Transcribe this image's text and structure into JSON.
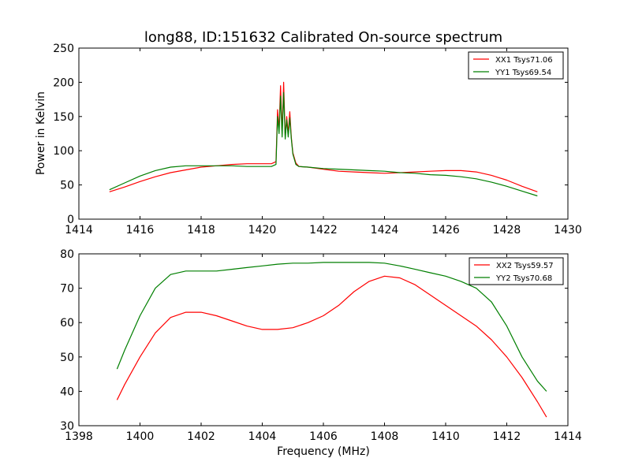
{
  "figure": {
    "title": "long88, ID:151632 Calibrated On-source spectrum",
    "xlabel": "Frequency (MHz)",
    "colors": {
      "xx": "#ff0000",
      "yy": "#007f00",
      "axis": "#000000",
      "background": "#ffffff"
    }
  },
  "chart_data": [
    {
      "type": "line",
      "title": "long88, ID:151632 Calibrated On-source spectrum",
      "xlabel": "",
      "ylabel": "Power in Kelvin",
      "xlim": [
        1414,
        1430
      ],
      "ylim": [
        0,
        250
      ],
      "xticks": [
        1414,
        1416,
        1418,
        1420,
        1422,
        1424,
        1426,
        1428,
        1430
      ],
      "yticks": [
        0,
        50,
        100,
        150,
        200,
        250
      ],
      "legend_position": "top-right",
      "series": [
        {
          "name": "XX1 Tsys71.06",
          "color": "#ff0000",
          "x": [
            1415.0,
            1415.5,
            1416.0,
            1416.5,
            1417.0,
            1417.5,
            1418.0,
            1418.5,
            1419.0,
            1419.5,
            1420.0,
            1420.3,
            1420.45,
            1420.5,
            1420.55,
            1420.6,
            1420.65,
            1420.7,
            1420.75,
            1420.8,
            1420.85,
            1420.9,
            1420.95,
            1421.0,
            1421.1,
            1421.2,
            1421.5,
            1422.0,
            1422.5,
            1423.0,
            1423.5,
            1424.0,
            1424.5,
            1425.0,
            1425.5,
            1426.0,
            1426.5,
            1427.0,
            1427.5,
            1428.0,
            1428.5,
            1429.0
          ],
          "values": [
            40,
            47,
            55,
            62,
            68,
            72,
            76,
            78,
            80,
            81,
            81,
            81,
            84,
            160,
            130,
            195,
            125,
            200,
            120,
            150,
            125,
            157,
            120,
            97,
            82,
            77,
            76,
            73,
            70,
            69,
            68,
            67,
            68,
            69,
            70,
            71,
            71,
            69,
            64,
            57,
            48,
            40
          ]
        },
        {
          "name": "YY1 Tsys69.54",
          "color": "#007f00",
          "x": [
            1415.0,
            1415.5,
            1416.0,
            1416.5,
            1417.0,
            1417.5,
            1418.0,
            1418.5,
            1419.0,
            1419.5,
            1420.0,
            1420.3,
            1420.45,
            1420.5,
            1420.55,
            1420.6,
            1420.65,
            1420.7,
            1420.75,
            1420.8,
            1420.85,
            1420.9,
            1420.95,
            1421.0,
            1421.1,
            1421.2,
            1421.5,
            1422.0,
            1422.5,
            1423.0,
            1423.5,
            1424.0,
            1424.5,
            1425.0,
            1425.5,
            1426.0,
            1426.5,
            1427.0,
            1427.5,
            1428.0,
            1428.5,
            1429.0
          ],
          "values": [
            43,
            53,
            63,
            71,
            76,
            78,
            78,
            78,
            78,
            77,
            77,
            77,
            80,
            150,
            125,
            180,
            120,
            185,
            117,
            145,
            120,
            148,
            118,
            95,
            80,
            77,
            76,
            74,
            73,
            72,
            71,
            70,
            68,
            67,
            65,
            64,
            62,
            59,
            54,
            48,
            41,
            34
          ]
        }
      ]
    },
    {
      "type": "line",
      "title": "",
      "xlabel": "Frequency (MHz)",
      "ylabel": "",
      "xlim": [
        1398,
        1414
      ],
      "ylim": [
        30,
        80
      ],
      "xticks": [
        1398,
        1400,
        1402,
        1404,
        1406,
        1408,
        1410,
        1412,
        1414
      ],
      "yticks": [
        30,
        40,
        50,
        60,
        70,
        80
      ],
      "legend_position": "top-right",
      "series": [
        {
          "name": "XX2 Tsys59.57",
          "color": "#ff0000",
          "x": [
            1399.25,
            1399.5,
            1400.0,
            1400.5,
            1401.0,
            1401.5,
            1402.0,
            1402.5,
            1403.0,
            1403.5,
            1404.0,
            1404.5,
            1405.0,
            1405.5,
            1406.0,
            1406.5,
            1407.0,
            1407.5,
            1408.0,
            1408.5,
            1409.0,
            1409.5,
            1410.0,
            1410.5,
            1411.0,
            1411.5,
            1412.0,
            1412.5,
            1413.0,
            1413.3
          ],
          "values": [
            37.5,
            42,
            50,
            57,
            61.5,
            63,
            63,
            62,
            60.5,
            59,
            58,
            58,
            58.5,
            60,
            62,
            65,
            69,
            72,
            73.5,
            73,
            71,
            68,
            65,
            62,
            59,
            55,
            50,
            44,
            37,
            32.5
          ]
        },
        {
          "name": "YY2 Tsys70.68",
          "color": "#007f00",
          "x": [
            1399.25,
            1399.5,
            1400.0,
            1400.5,
            1401.0,
            1401.5,
            1402.0,
            1402.5,
            1403.0,
            1403.5,
            1404.0,
            1404.5,
            1405.0,
            1405.5,
            1406.0,
            1406.5,
            1407.0,
            1407.5,
            1408.0,
            1408.5,
            1409.0,
            1409.5,
            1410.0,
            1410.5,
            1411.0,
            1411.5,
            1412.0,
            1412.5,
            1413.0,
            1413.3
          ],
          "values": [
            46.5,
            52,
            62,
            70,
            74,
            75,
            75,
            75,
            75.5,
            76,
            76.5,
            77,
            77.3,
            77.3,
            77.5,
            77.5,
            77.5,
            77.5,
            77.3,
            76.5,
            75.5,
            74.5,
            73.5,
            72,
            70,
            66,
            59,
            50,
            43,
            40
          ]
        }
      ]
    }
  ]
}
